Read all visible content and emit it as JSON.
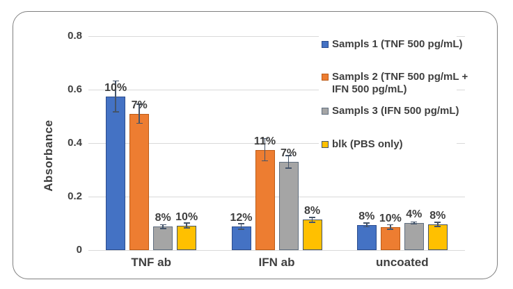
{
  "chart_data": {
    "type": "bar",
    "title": "",
    "ylabel": "Absorbance",
    "xlabel": "",
    "categories": [
      "TNF ab",
      "IFN ab",
      "uncoated"
    ],
    "series": [
      {
        "name": "Sampls 1 (TNF 500 pg/mL)",
        "legend_lines": [
          "Sampls 1 (TNF 500 pg/mL)"
        ],
        "color": "#4472C4",
        "border_color": "#2B4C8C",
        "values": [
          0.575,
          0.088,
          0.094
        ],
        "cv_percent": [
          10,
          12,
          8
        ],
        "cv_labels": [
          "10%",
          "12%",
          "8%"
        ]
      },
      {
        "name": "Sampls 2 (TNF 500 pg/mL + IFN 500 pg/mL)",
        "legend_lines": [
          "Sampls 2 (TNF 500 pg/mL +",
          "IFN 500 pg/mL)"
        ],
        "color": "#ED7D31",
        "border_color": "#BC5B16",
        "values": [
          0.51,
          0.375,
          0.086
        ],
        "cv_percent": [
          7,
          11,
          10
        ],
        "cv_labels": [
          "7%",
          "11%",
          "10%"
        ]
      },
      {
        "name": "Sampls 3 (IFN 500 pg/mL)",
        "legend_lines": [
          "Sampls 3 (IFN 500 pg/mL)"
        ],
        "color": "#A5A5A5",
        "border_color": "#5F6E7F",
        "values": [
          0.088,
          0.33,
          0.101
        ],
        "cv_percent": [
          8,
          7,
          4
        ],
        "cv_labels": [
          "8%",
          "7%",
          "4%"
        ]
      },
      {
        "name": "blk (PBS only)",
        "legend_lines": [
          "blk (PBS only)"
        ],
        "color": "#FFC000",
        "border_color": "#44546A",
        "values": [
          0.092,
          0.113,
          0.096
        ],
        "cv_percent": [
          10,
          8,
          8
        ],
        "cv_labels": [
          "10%",
          "8%",
          "8%"
        ]
      }
    ],
    "y_ticks": [
      {
        "value": 0.0,
        "label": "0"
      },
      {
        "value": 0.2,
        "label": "0.2"
      },
      {
        "value": 0.4,
        "label": "0.4"
      },
      {
        "value": 0.6,
        "label": "0.6"
      },
      {
        "value": 0.8,
        "label": "0.8"
      }
    ],
    "ylim": [
      0,
      0.8
    ],
    "grid": true,
    "legend_position": "right",
    "error_bars": "symmetric, magnitude = value × CV% (CV% shown as data label above each bar)"
  },
  "colors": {
    "background": "#FFFFFF",
    "frame_border": "#7F7F7F",
    "gridline": "#D9D9D9",
    "text": "#3F3F3F",
    "error_bar": "#44546A"
  }
}
